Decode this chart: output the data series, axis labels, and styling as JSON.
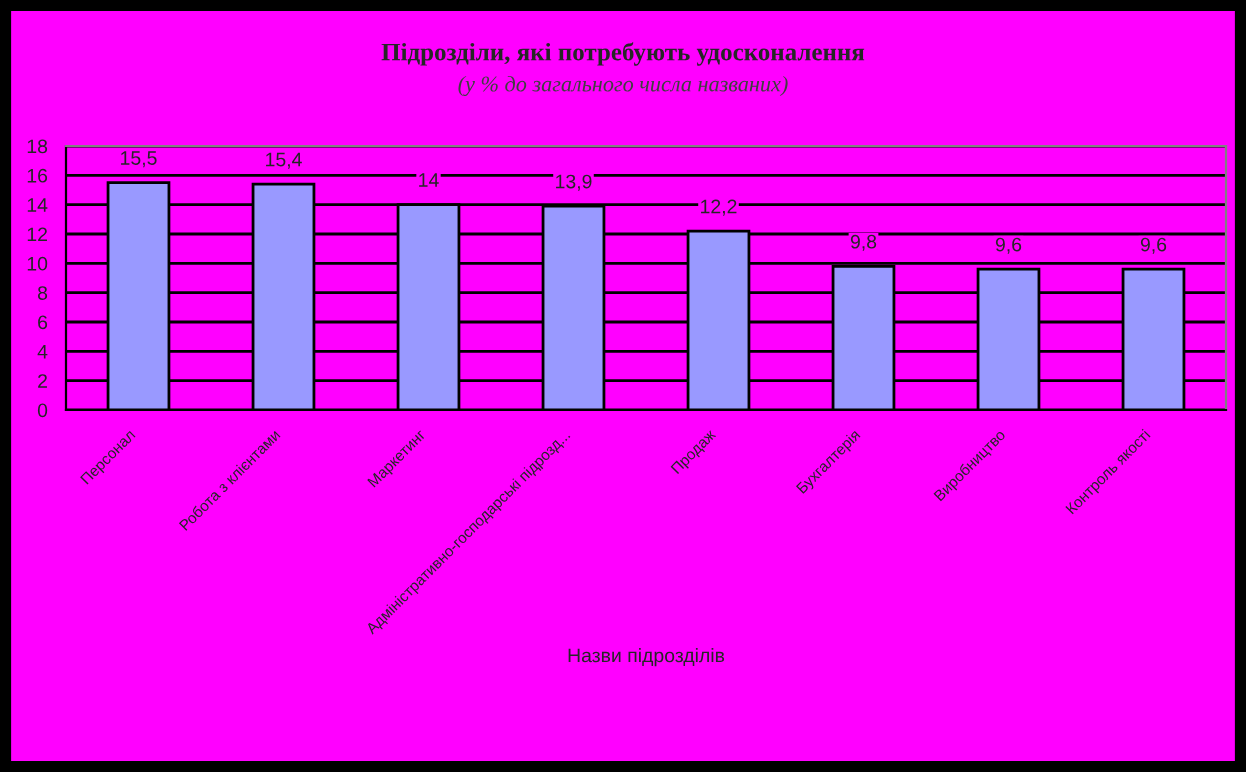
{
  "chart_data": {
    "type": "bar",
    "title": "Підрозділи, які потребують удосконалення",
    "subtitle": "(у % до загального числа названих)",
    "xlabel": "Назви підрозділів",
    "categories": [
      "Персонал",
      "Робота з клієнтами",
      "Маркетинг",
      "Адміністративно-господарські підрозд...",
      "Продаж",
      "Бухгалтерія",
      "Виробництво",
      "Контроль якості"
    ],
    "values": [
      15.5,
      15.4,
      14,
      13.9,
      12.2,
      9.8,
      9.6,
      9.6
    ],
    "value_labels": [
      "15,5",
      "15,4",
      "14",
      "13,9",
      "12,2",
      "9,8",
      "9,6",
      "9,6"
    ],
    "color": "#9999ff",
    "ylim": [
      0,
      18
    ],
    "yticks": [
      0,
      2,
      4,
      6,
      8,
      10,
      12,
      14,
      16,
      18
    ],
    "grid": "y"
  }
}
